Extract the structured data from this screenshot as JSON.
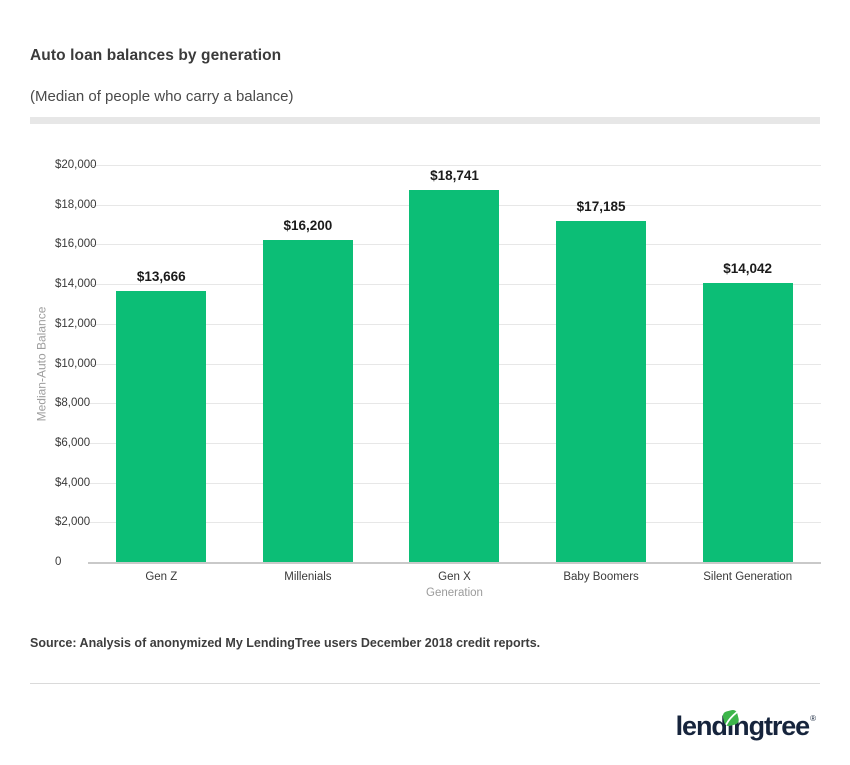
{
  "header": {
    "title": "Auto loan balances by generation",
    "subtitle": "(Median of people who carry a balance)"
  },
  "chart_data": {
    "type": "bar",
    "title": "Auto loan balances by generation",
    "subtitle": "(Median of people who carry a balance)",
    "categories": [
      "Gen Z",
      "Millenials",
      "Gen X",
      "Baby Boomers",
      "Silent Generation"
    ],
    "values": [
      13666,
      16200,
      18741,
      17185,
      14042
    ],
    "value_labels": [
      "$13,666",
      "$16,200",
      "$18,741",
      "$17,185",
      "$14,042"
    ],
    "xlabel": "Generation",
    "ylabel": "Median-Auto Balance",
    "ylim": [
      0,
      20000
    ],
    "ytick_interval": 2000,
    "yticks": [
      0,
      2000,
      4000,
      6000,
      8000,
      10000,
      12000,
      14000,
      16000,
      18000,
      20000
    ],
    "ytick_labels": [
      "0",
      "$2,000",
      "$4,000",
      "$6,000",
      "$8,000",
      "$10,000",
      "$12,000",
      "$14,000",
      "$16,000",
      "$18,000",
      "$20,000"
    ],
    "grid": true,
    "legend": "none",
    "bar_color": "#0cbe76"
  },
  "footer": {
    "source": "Source: Analysis of anonymized My LendingTree users December 2018 credit reports.",
    "logo": {
      "brand": "lendingtree",
      "part1": "lend",
      "part2": "ı",
      "part3": "ngtree",
      "registered_mark": "®",
      "leaf_color": "#3cb54a",
      "wordmark_color": "#16243c"
    }
  },
  "colors": {
    "bar": "#0cbe76",
    "accent_bar": "#e7e7e7",
    "gridline": "#e7e7e7",
    "axis_line": "#c9c9c9"
  }
}
